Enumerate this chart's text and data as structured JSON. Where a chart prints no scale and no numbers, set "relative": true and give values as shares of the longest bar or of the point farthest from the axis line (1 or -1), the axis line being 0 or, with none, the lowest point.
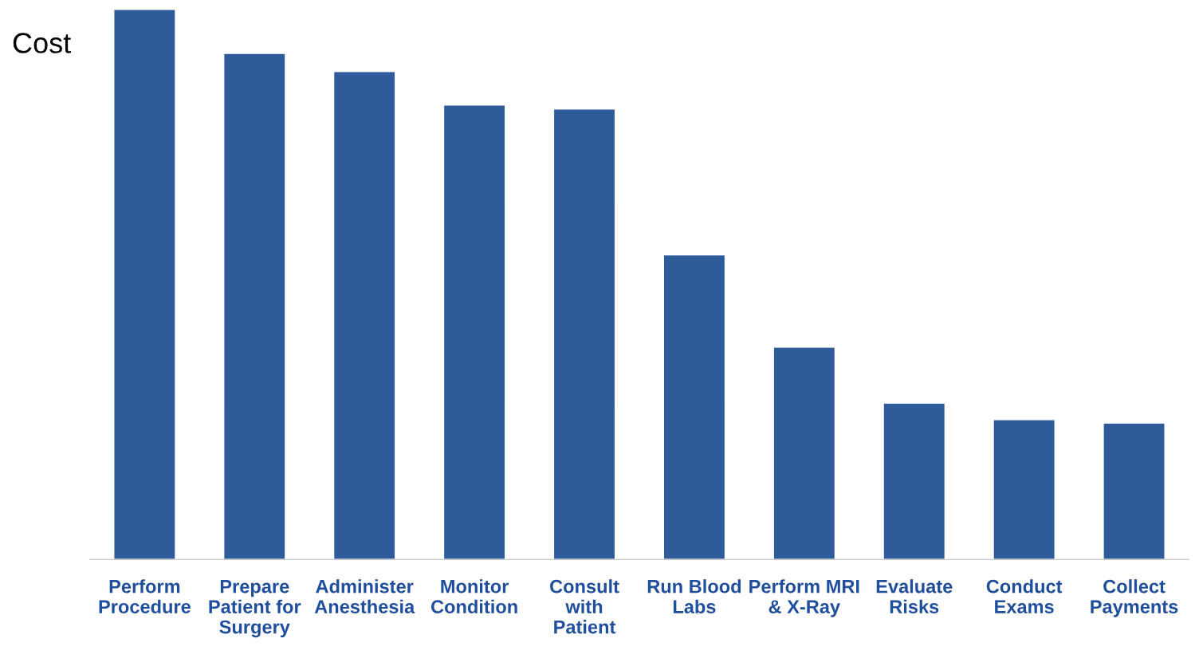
{
  "chart_data": {
    "type": "bar",
    "relative": true,
    "ylabel": "Cost",
    "categories": [
      "Perform\nProcedure",
      "Prepare\nPatient for\nSurgery",
      "Administer\nAnesthesia",
      "Monitor\nCondition",
      "Consult\nwith\nPatient",
      "Run Blood\nLabs",
      "Perform MRI\n& X-Ray",
      "Evaluate\nRisks",
      "Conduct\nExams",
      "Collect\nPayments"
    ],
    "values": [
      1,
      0.92,
      0.887,
      0.826,
      0.819,
      0.554,
      0.386,
      0.284,
      0.254,
      0.248
    ],
    "color": "#2e5c9a",
    "grid": false,
    "legend": false
  }
}
